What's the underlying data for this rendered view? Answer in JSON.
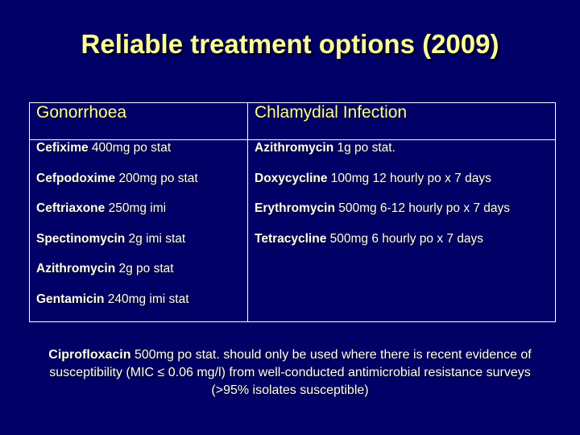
{
  "title": "Reliable treatment options (2009)",
  "columns": {
    "left_header": "Gonorrhoea",
    "right_header": "Chlamydial Infection"
  },
  "gonorrhoea": [
    {
      "drug": "Cefixime",
      "dose": " 400mg po stat"
    },
    {
      "drug": "Cefpodoxime",
      "dose": " 200mg po stat"
    },
    {
      "drug": "Ceftriaxone",
      "dose": " 250mg imi"
    },
    {
      "drug": "Spectinomycin",
      "dose": " 2g imi stat"
    },
    {
      "drug": "Azithromycin",
      "dose": " 2g po stat"
    },
    {
      "drug": "Gentamicin",
      "dose": " 240mg imi stat"
    }
  ],
  "chlamydia": [
    {
      "drug": "Azithromycin",
      "dose": " 1g po stat."
    },
    {
      "drug": "Doxycycline",
      "dose": " 100mg 12 hourly po x 7 days"
    },
    {
      "drug": "Erythromycin",
      "dose": " 500mg 6-12 hourly po x 7 days"
    },
    {
      "drug": "Tetracycline",
      "dose": " 500mg 6 hourly po x 7 days"
    }
  ],
  "note": {
    "drug": "Ciprofloxacin",
    "text": " 500mg po stat. should only be used where there is recent evidence of susceptibility (MIC ≤ 0.06 mg/l) from well-conducted antimicrobial resistance surveys (>95% isolates susceptible)"
  },
  "colors": {
    "background": "#000066",
    "title": "#ffff99",
    "header": "#ffff99",
    "text": "#ffffff"
  }
}
